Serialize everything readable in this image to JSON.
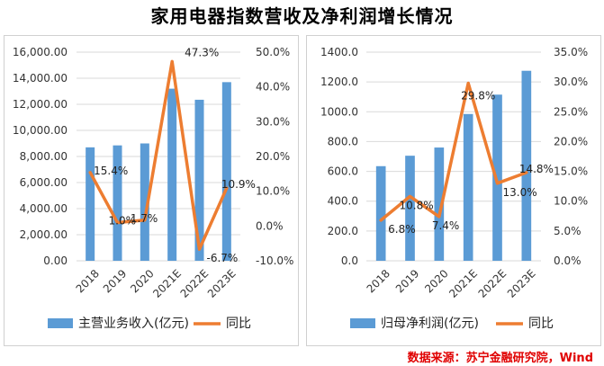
{
  "title": "家用电器指数营收及净利润增长情况",
  "source": "数据来源：苏宁金融研究院，Wind",
  "colors": {
    "bar": "#5b9bd5",
    "line": "#ed7d31"
  },
  "chart_data": [
    {
      "type": "bar",
      "categories": [
        "2018",
        "2019",
        "2020",
        "2021E",
        "2022E",
        "2023E"
      ],
      "series": [
        {
          "name": "主营业务收入(亿元)",
          "type": "bar",
          "axis": "left",
          "values": [
            8700,
            8850,
            9000,
            13200,
            12350,
            13700
          ]
        },
        {
          "name": "同比",
          "type": "line",
          "axis": "right",
          "values": [
            15.4,
            1.0,
            1.7,
            47.3,
            -6.7,
            10.9
          ]
        }
      ],
      "left_axis": {
        "min": 0,
        "max": 16000,
        "step": 2000,
        "ticks": [
          "0.00",
          "2,000.00",
          "4,000.00",
          "6,000.00",
          "8,000.00",
          "10,000.00",
          "12,000.00",
          "14,000.00",
          "16,000.00"
        ]
      },
      "right_axis": {
        "min": -10,
        "max": 50,
        "step": 10,
        "ticks": [
          "-10.0%",
          "0.0%",
          "10.0%",
          "20.0%",
          "30.0%",
          "40.0%",
          "50.0%"
        ]
      },
      "data_labels": [
        "15.4%",
        "1.0%",
        "1.7%",
        "47.3%",
        "-6.7%",
        "10.9%"
      ],
      "legend": [
        "主营业务收入(亿元)",
        "同比"
      ]
    },
    {
      "type": "bar",
      "categories": [
        "2018",
        "2019",
        "2020",
        "2021E",
        "2022E",
        "2023E"
      ],
      "series": [
        {
          "name": "归母净利润(亿元)",
          "type": "bar",
          "axis": "left",
          "values": [
            635,
            705,
            760,
            985,
            1115,
            1275
          ]
        },
        {
          "name": "同比",
          "type": "line",
          "axis": "right",
          "values": [
            6.8,
            10.8,
            7.4,
            29.8,
            13.0,
            14.8
          ]
        }
      ],
      "left_axis": {
        "min": 0,
        "max": 1400,
        "step": 200,
        "ticks": [
          "0.0",
          "200.0",
          "400.0",
          "600.0",
          "800.0",
          "1000.0",
          "1200.0",
          "1400.0"
        ]
      },
      "right_axis": {
        "min": 0,
        "max": 35,
        "step": 5,
        "ticks": [
          "0.0%",
          "5.0%",
          "10.0%",
          "15.0%",
          "20.0%",
          "25.0%",
          "30.0%",
          "35.0%"
        ]
      },
      "data_labels": [
        "6.8%",
        "10.8%",
        "7.4%",
        "29.8%",
        "13.0%",
        "14.8%"
      ],
      "legend": [
        "归母净利润(亿元)",
        "同比"
      ]
    }
  ]
}
